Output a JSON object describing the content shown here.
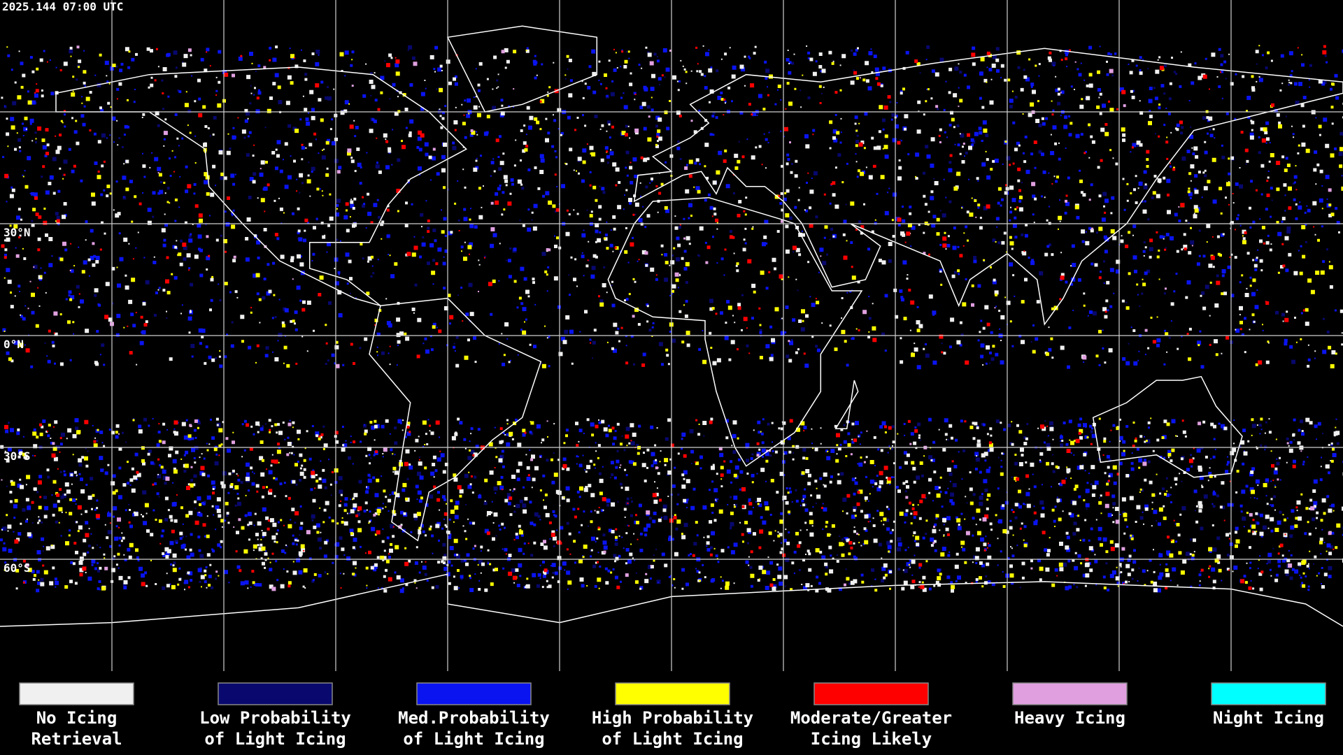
{
  "header": {
    "timestamp": "2025.144 07:00 UTC"
  },
  "map": {
    "latitude_labels": [
      "30°N",
      "0°N",
      "30°S",
      "60°S"
    ]
  },
  "legend": {
    "items": [
      {
        "lines": [
          "No Icing",
          "Retrieval"
        ],
        "color": "#f0f0f0"
      },
      {
        "lines": [
          "Low Probability",
          "of Light Icing"
        ],
        "color": "#08086e"
      },
      {
        "lines": [
          "Med.Probability",
          "of Light Icing"
        ],
        "color": "#0a14f0"
      },
      {
        "lines": [
          "High Probability",
          "of Light Icing"
        ],
        "color": "#ffff00"
      },
      {
        "lines": [
          "Moderate/Greater",
          "Icing Likely"
        ],
        "color": "#ff0000"
      },
      {
        "lines": [
          "Heavy Icing"
        ],
        "color": "#e0a0e0"
      },
      {
        "lines": [
          "Night Icing"
        ],
        "color": "#00ffff"
      }
    ]
  }
}
